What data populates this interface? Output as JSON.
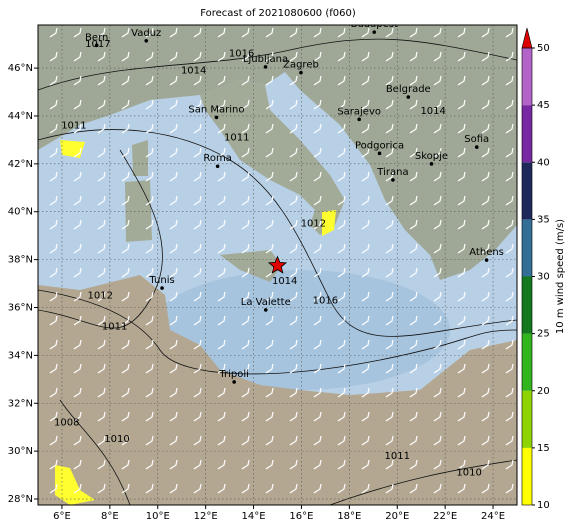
{
  "map": {
    "title": "Forecast of 2021080600 (f060)",
    "lonlim": [
      5,
      25
    ],
    "latlim": [
      27.75,
      47.8
    ],
    "lonticks": [
      {
        "value": 6,
        "label": "6°E"
      },
      {
        "value": 8,
        "label": "8°E"
      },
      {
        "value": 10,
        "label": "10°E"
      },
      {
        "value": 12,
        "label": "12°E"
      },
      {
        "value": 14,
        "label": "14°E"
      },
      {
        "value": 16,
        "label": "16°E"
      },
      {
        "value": 18,
        "label": "18°E"
      },
      {
        "value": 20,
        "label": "20°E"
      },
      {
        "value": 22,
        "label": "22°E"
      },
      {
        "value": 24,
        "label": "24°E"
      }
    ],
    "latticks": [
      {
        "value": 28,
        "label": "28°N"
      },
      {
        "value": 30,
        "label": "30°N"
      },
      {
        "value": 32,
        "label": "32°N"
      },
      {
        "value": 34,
        "label": "34°N"
      },
      {
        "value": 36,
        "label": "36°N"
      },
      {
        "value": 38,
        "label": "38°N"
      },
      {
        "value": 40,
        "label": "40°N"
      },
      {
        "value": 42,
        "label": "42°N"
      },
      {
        "value": 44,
        "label": "44°N"
      },
      {
        "value": 46,
        "label": "46°N"
      }
    ],
    "cities": [
      {
        "name": "Bern",
        "lon": 7.45,
        "lat": 46.95
      },
      {
        "name": "Vaduz",
        "lon": 9.52,
        "lat": 47.14
      },
      {
        "name": "Budapest",
        "lon": 19.04,
        "lat": 47.5
      },
      {
        "name": "Ljubljana",
        "lon": 14.5,
        "lat": 46.05
      },
      {
        "name": "Zagreb",
        "lon": 15.98,
        "lat": 45.81
      },
      {
        "name": "San Marino",
        "lon": 12.45,
        "lat": 43.94
      },
      {
        "name": "Belgrade",
        "lon": 20.46,
        "lat": 44.79
      },
      {
        "name": "Sarajevo",
        "lon": 18.41,
        "lat": 43.86
      },
      {
        "name": "Sofia",
        "lon": 23.32,
        "lat": 42.7
      },
      {
        "name": "Podgorica",
        "lon": 19.26,
        "lat": 42.44
      },
      {
        "name": "Skopje",
        "lon": 21.43,
        "lat": 42.0
      },
      {
        "name": "Roma",
        "lon": 12.5,
        "lat": 41.9
      },
      {
        "name": "Tirana",
        "lon": 19.82,
        "lat": 41.33
      },
      {
        "name": "Athens",
        "lon": 23.73,
        "lat": 37.98
      },
      {
        "name": "Tunis",
        "lon": 10.18,
        "lat": 36.81
      },
      {
        "name": "La Valette",
        "lon": 14.51,
        "lat": 35.9
      },
      {
        "name": "Tripoli",
        "lon": 13.19,
        "lat": 32.89
      }
    ],
    "marker": {
      "lon": 15.0,
      "lat": 37.75
    },
    "contour_labels": [
      {
        "value": 1017,
        "lon": 7.5,
        "lat": 47.0
      },
      {
        "value": 1016,
        "lon": 13.5,
        "lat": 46.6
      },
      {
        "value": 1014,
        "lon": 11.5,
        "lat": 45.9
      },
      {
        "value": 1014,
        "lon": 21.5,
        "lat": 44.2
      },
      {
        "value": 1011,
        "lon": 13.3,
        "lat": 43.1
      },
      {
        "value": 1011,
        "lon": 6.5,
        "lat": 43.6
      },
      {
        "value": 1012,
        "lon": 7.6,
        "lat": 36.5
      },
      {
        "value": 1011,
        "lon": 8.2,
        "lat": 35.2
      },
      {
        "value": 1014,
        "lon": 15.3,
        "lat": 37.1
      },
      {
        "value": 1016,
        "lon": 17.0,
        "lat": 36.3
      },
      {
        "value": 1012,
        "lon": 16.5,
        "lat": 39.5
      },
      {
        "value": 1010,
        "lon": 23.0,
        "lat": 29.1
      },
      {
        "value": 1011,
        "lon": 20.0,
        "lat": 29.8
      },
      {
        "value": 1008,
        "lon": 6.2,
        "lat": 31.2
      },
      {
        "value": 1010,
        "lon": 8.3,
        "lat": 30.5
      }
    ],
    "colorbar": {
      "label": "10 m wind speed (m/s)",
      "ticks": [
        10,
        15,
        20,
        25,
        30,
        35,
        40,
        45,
        50
      ],
      "colors": [
        "#ffff00",
        "#8fd400",
        "#32b41e",
        "#14781e",
        "#326e96",
        "#1e285a",
        "#7828a0",
        "#b464c8"
      ],
      "extend_color": "#dc0000"
    }
  }
}
